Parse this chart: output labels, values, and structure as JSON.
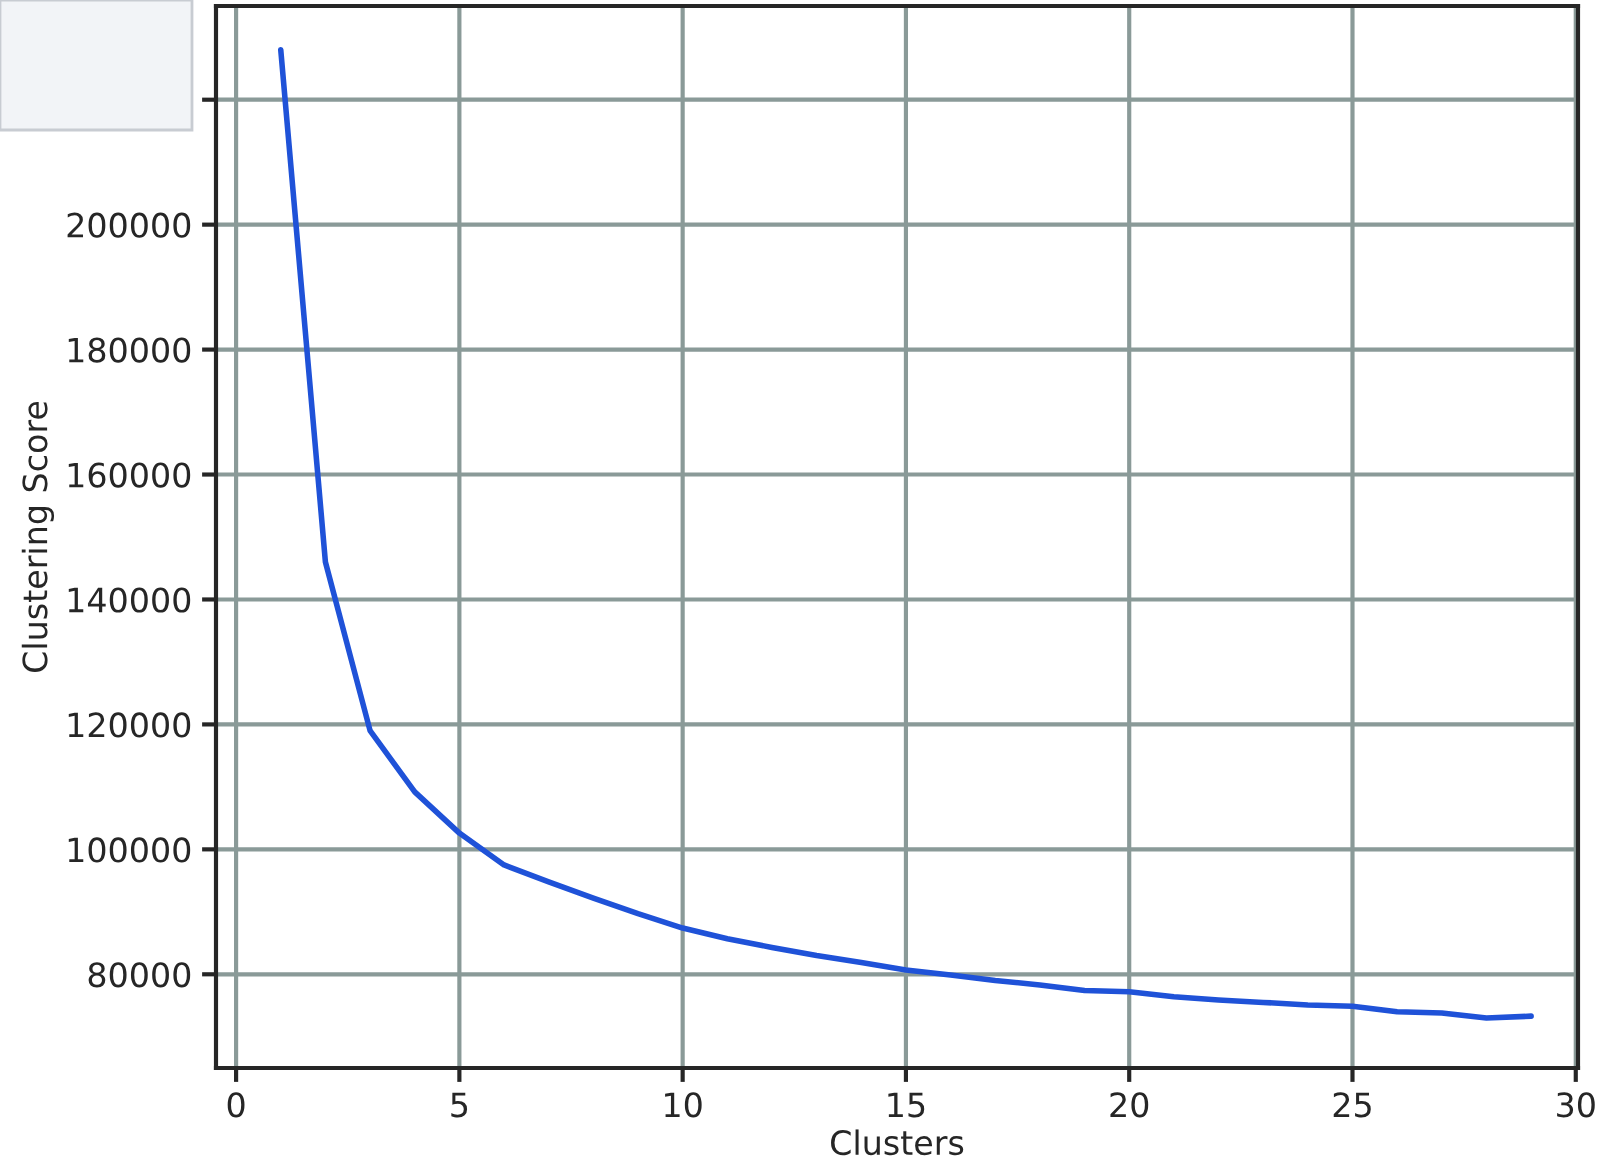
{
  "chart_data": {
    "type": "line",
    "xlabel": "Clusters",
    "ylabel": "Clustering Score",
    "x": [
      1,
      2,
      3,
      4,
      5,
      6,
      7,
      8,
      9,
      10,
      11,
      12,
      13,
      14,
      15,
      16,
      17,
      18,
      19,
      20,
      21,
      22,
      23,
      24,
      25,
      26,
      27,
      28,
      29
    ],
    "series": [
      {
        "color": "#1f52d8",
        "values": [
          228000,
          146000,
          119000,
          109200,
          102600,
          97500,
          94800,
          92200,
          89700,
          87400,
          85700,
          84300,
          83000,
          81900,
          80700,
          79900,
          79000,
          78300,
          77400,
          77200,
          76400,
          75900,
          75500,
          75100,
          74900,
          74000,
          73800,
          73000,
          73300
        ]
      }
    ],
    "xlim": [
      -0.45,
      30.05
    ],
    "xticks": [
      0,
      5,
      10,
      15,
      20,
      25,
      30
    ],
    "ylim": [
      65000,
      235000
    ],
    "yticks": [
      80000,
      100000,
      120000,
      140000,
      160000,
      180000,
      200000,
      {
        "value": 220000,
        "label": null
      }
    ],
    "grid": true,
    "marker": "none",
    "line_style": "solid"
  }
}
